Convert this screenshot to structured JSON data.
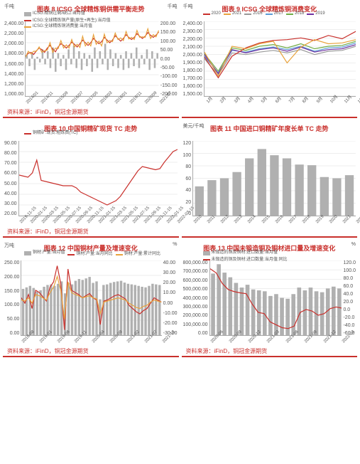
{
  "charts": [
    {
      "title": "图表 8 ICSG 全球精炼铜供需平衡走势",
      "y_unit": "千吨",
      "y_unit2": "千吨",
      "y_ticks": [
        "2,400.00",
        "2,200.00",
        "2,000.00",
        "1,800.00",
        "1,600.00",
        "1,400.00",
        "1,200.00",
        "1,000.00"
      ],
      "y2_ticks": [
        "200.00",
        "150.00",
        "100.00",
        "50.00",
        "0.00",
        "-50.00",
        "-100.00",
        "-150.00",
        "-200.00"
      ],
      "x_ticks": [
        "2014/01",
        "2014/11",
        "2015/09",
        "2016/07",
        "2017/05",
        "2018/03",
        "2019/01",
        "2019/11",
        "2020/09",
        "2021/07"
      ],
      "legend": [
        {
          "label": "ICSG:精铜过剩/缺口:当月值",
          "color": "#b0b0b0",
          "type": "box"
        },
        {
          "label": "ICSG:全球精炼铜产量(原生+再生):当月值",
          "color": "#c9302c",
          "type": "line"
        },
        {
          "label": "ICSG:全球精炼铜消费量:当月值",
          "color": "#e8a33d",
          "type": "line"
        }
      ],
      "source": "资料来源：iFinD，铜冠金源期货",
      "series": [
        {
          "type": "bars",
          "axis": 2,
          "color": "#b0b0b0",
          "values": [
            20,
            -40,
            30,
            -60,
            10,
            -20,
            50,
            -30,
            40,
            -50,
            60,
            -70,
            30,
            -40,
            20,
            -60,
            50,
            -30,
            70,
            -50,
            40,
            -60,
            30,
            -40,
            20,
            -70,
            60,
            -50,
            40,
            -30,
            80,
            -60,
            50,
            -40,
            30,
            -50,
            20,
            -60,
            40,
            -50,
            30,
            -40,
            60,
            -50,
            20,
            -30,
            50,
            -60,
            40,
            -50,
            30
          ]
        },
        {
          "type": "line",
          "axis": 1,
          "color": "#c9302c",
          "values": [
            1750,
            1800,
            1820,
            1780,
            1850,
            1900,
            1870,
            1820,
            1900,
            1950,
            1880,
            1830,
            1920,
            1980,
            1950,
            1900,
            1950,
            2010,
            1970,
            1920,
            1980,
            2050,
            2000,
            1950,
            2000,
            2080,
            2030,
            1980,
            2020,
            2100,
            2050,
            2000,
            2050,
            2130,
            2080,
            2030,
            2080,
            2150,
            2100,
            2060,
            2100,
            2170,
            2120,
            2080,
            2120,
            2190,
            2140,
            2100,
            2140,
            2200
          ]
        },
        {
          "type": "line",
          "axis": 1,
          "color": "#e8a33d",
          "values": [
            1730,
            1840,
            1790,
            1840,
            1840,
            1920,
            1820,
            1850,
            1860,
            2000,
            1820,
            1900,
            1890,
            2040,
            1900,
            1960,
            1900,
            2060,
            1920,
            1970,
            1910,
            2120,
            1940,
            2010,
            1940,
            2150,
            1970,
            2030,
            1940,
            2160,
            2000,
            2040,
            2020,
            2180,
            2060,
            2090,
            2040,
            2210,
            2070,
            2100,
            2060,
            2230,
            2100,
            2110,
            2100,
            2260,
            2080,
            2150,
            2110,
            2230
          ]
        }
      ],
      "y_range": [
        1000,
        2400
      ],
      "y2_range": [
        -200,
        200
      ]
    },
    {
      "title": "图表 9 ICSG 全球精炼铜消费变化",
      "y_unit": "千吨",
      "y_ticks": [
        "2,400.00",
        "2,300.00",
        "2,200.00",
        "2,100.00",
        "2,000.00",
        "1,900.00",
        "1,800.00",
        "1,700.00",
        "1,600.00",
        "1,500.00"
      ],
      "x_ticks": [
        "1月",
        "2月",
        "3月",
        "4月",
        "5月",
        "6月",
        "7月",
        "8月",
        "9月",
        "10月",
        "11月",
        "12月"
      ],
      "legend": [
        {
          "label": "2020",
          "color": "#c9302c",
          "type": "line"
        },
        {
          "label": "2021",
          "color": "#e8a33d",
          "type": "line"
        },
        {
          "label": "2016",
          "color": "#999",
          "type": "line"
        },
        {
          "label": "2017",
          "color": "#5b9bd5",
          "type": "line"
        },
        {
          "label": "2018",
          "color": "#70ad47",
          "type": "line"
        },
        {
          "label": "2019",
          "color": "#7030a0",
          "type": "line"
        }
      ],
      "source": "",
      "series": [
        {
          "type": "line",
          "color": "#999",
          "values": [
            1950,
            1750,
            2020,
            2000,
            2030,
            2050,
            2020,
            2060,
            2000,
            2040,
            2050,
            2100
          ]
        },
        {
          "type": "line",
          "color": "#5b9bd5",
          "values": [
            1980,
            1780,
            2050,
            2030,
            2070,
            2090,
            2060,
            2100,
            2040,
            2080,
            2090,
            2140
          ]
        },
        {
          "type": "line",
          "color": "#70ad47",
          "values": [
            2010,
            1800,
            2080,
            2050,
            2100,
            2120,
            2080,
            2130,
            2070,
            2100,
            2110,
            2160
          ]
        },
        {
          "type": "line",
          "color": "#7030a0",
          "values": [
            2000,
            1770,
            2060,
            2020,
            2060,
            2080,
            2040,
            2090,
            2030,
            2060,
            2070,
            2120
          ]
        },
        {
          "type": "line",
          "color": "#c9302c",
          "values": [
            1970,
            1720,
            1980,
            2080,
            2140,
            2170,
            2180,
            2200,
            2170,
            2230,
            2190,
            2280
          ]
        },
        {
          "type": "line",
          "color": "#e8a33d",
          "values": [
            2030,
            1740,
            2100,
            2070,
            2130,
            2160,
            1900,
            2090,
            2180,
            2130,
            2140,
            2180
          ]
        }
      ],
      "y_range": [
        1500,
        2400
      ]
    },
    {
      "title": "图表 10 中国铜精矿现货 TC 走势",
      "y_ticks": [
        "90.00",
        "80.00",
        "70.00",
        "60.00",
        "50.00",
        "40.00",
        "30.00",
        "20.00"
      ],
      "x_ticks": [
        "2019-11-15",
        "2020-01-15",
        "2020-03-15",
        "2020-05-15",
        "2020-07-15",
        "2020-09-15",
        "2020-11-15",
        "2021-01-15",
        "2021-03-15",
        "2021-05-15",
        "2021-07-15",
        "2021-09-15",
        "2021-11-15",
        "2022-01-15",
        "2022-03-15"
      ],
      "legend": [
        {
          "label": "铜精矿:现货:粗炼费(TC)",
          "color": "#c9302c",
          "type": "line"
        }
      ],
      "source": "资料来源：iFinD，铜冠金源期货",
      "series": [
        {
          "type": "line",
          "color": "#c9302c",
          "values": [
            58,
            57,
            56,
            60,
            72,
            53,
            52,
            51,
            50,
            49,
            48,
            48,
            48,
            46,
            42,
            40,
            38,
            36,
            34,
            32,
            30,
            32,
            34,
            38,
            44,
            50,
            56,
            62,
            66,
            65,
            64,
            63,
            64,
            70,
            75,
            80,
            82
          ]
        }
      ],
      "y_range": [
        20,
        90
      ]
    },
    {
      "title": "图表 11 中国进口铜精矿年度长单 TC 走势",
      "y_unit": "美元/千吨",
      "y_ticks": [
        "120",
        "100",
        "80",
        "60",
        "40",
        "20",
        "0"
      ],
      "x_ticks": [
        "2010",
        "2011",
        "2012",
        "2013",
        "2014",
        "2015",
        "2016",
        "2017",
        "2018",
        "2019",
        "2020",
        "2021",
        "2022"
      ],
      "legend": [],
      "source": "",
      "series": [
        {
          "type": "bars",
          "color": "#b0b0b0",
          "values": [
            47,
            57,
            60,
            70,
            92,
            107,
            97,
            92,
            82,
            81,
            62,
            60,
            65
          ]
        }
      ],
      "y_range": [
        0,
        120
      ]
    },
    {
      "title": "图表 12 中国铜材产量及增速变化",
      "y_unit": "万吨",
      "y_unit2": "%",
      "y_ticks": [
        "250.00",
        "200.00",
        "150.00",
        "100.00",
        "50.00",
        "0.00"
      ],
      "y2_ticks": [
        "40.00",
        "30.00",
        "20.00",
        "10.00",
        "0.00",
        "-10.00",
        "-20.00",
        "-30.00"
      ],
      "x_ticks": [
        "2018-08",
        "2019-01",
        "2019-06",
        "2019-11",
        "2020-04",
        "2020-09",
        "2021-02",
        "2021-07",
        "2021-12"
      ],
      "legend": [
        {
          "label": "铜材:产量:当月值",
          "color": "#b0b0b0",
          "type": "box"
        },
        {
          "label": "铜材:产量:当月同比",
          "color": "#c9302c",
          "type": "line"
        },
        {
          "label": "铜材:产量:累计同比",
          "color": "#e8a33d",
          "type": "line"
        }
      ],
      "source": "资料来源：iFinD，铜冠金源期货",
      "series": [
        {
          "type": "bars",
          "axis": 1,
          "color": "#b0b0b0",
          "values": [
            155,
            160,
            165,
            158,
            145,
            150,
            162,
            168,
            170,
            165,
            172,
            180,
            140,
            175,
            170,
            182,
            188,
            185,
            190,
            195,
            175,
            180,
            120,
            168,
            170,
            175,
            178,
            180,
            182,
            176,
            172,
            170,
            168,
            165,
            162,
            160,
            165,
            172,
            170,
            168
          ]
        },
        {
          "type": "line",
          "axis": 2,
          "color": "#c9302c",
          "values": [
            5,
            0,
            8,
            -5,
            12,
            10,
            6,
            2,
            15,
            20,
            35,
            18,
            -25,
            32,
            12,
            10,
            8,
            5,
            7,
            9,
            5,
            3,
            -20,
            2,
            3,
            5,
            7,
            8,
            6,
            4,
            -2,
            -5,
            -8,
            -10,
            -7,
            -5,
            0,
            5,
            3,
            1
          ]
        },
        {
          "type": "line",
          "axis": 2,
          "color": "#e8a33d",
          "values": [
            3,
            2,
            5,
            0,
            8,
            7,
            5,
            3,
            10,
            15,
            25,
            12,
            -15,
            20,
            10,
            8,
            7,
            5,
            6,
            7,
            5,
            4,
            -10,
            1,
            2,
            3,
            4,
            5,
            4,
            3,
            0,
            -2,
            -4,
            -5,
            -3,
            -2,
            1,
            3,
            2,
            1
          ]
        }
      ],
      "y_range": [
        0,
        250
      ],
      "y2_range": [
        -30,
        40
      ]
    },
    {
      "title": "图表 13 中国未锻造铜及铜材进口量及增速变化",
      "y_unit2": "%",
      "y_ticks": [
        "800,000.00",
        "700,000.00",
        "600,000.00",
        "500,000.00",
        "400,000.00",
        "300,000.00",
        "200,000.00",
        "100,000.00",
        "0.00"
      ],
      "y2_ticks": [
        "120.0",
        "100.0",
        "80.0",
        "60.0",
        "40.0",
        "20.0",
        "0.0",
        "-20.0",
        "-40.0",
        "-60.0"
      ],
      "x_ticks": [
        "2020-06",
        "2020-09",
        "2020-12",
        "2021-03",
        "2021-06",
        "2021-09",
        "2021-12",
        "2022-03"
      ],
      "legend": [
        {
          "label": "未锻造的铜及铜材:进口数量:当月值",
          "color": "#b0b0b0",
          "type": "box"
        },
        {
          "label": "未锻造的铜及铜材:进口数量:当月值:同比",
          "color": "#c9302c",
          "type": "line"
        }
      ],
      "source": "资料来源：iFinD，铜冠金源期货",
      "series": [
        {
          "type": "bars",
          "axis": 1,
          "color": "#b0b0b0",
          "values": [
            660000,
            760000,
            670000,
            620000,
            560000,
            510000,
            540000,
            490000,
            480000,
            470000,
            420000,
            440000,
            400000,
            390000,
            440000,
            510000,
            480000,
            510000,
            470000,
            460000,
            500000,
            520000,
            500000
          ]
        },
        {
          "type": "line",
          "axis": 2,
          "color": "#c9302c",
          "values": [
            100,
            90,
            65,
            50,
            45,
            42,
            40,
            15,
            -5,
            -8,
            -28,
            -35,
            -42,
            -44,
            -38,
            -5,
            2,
            -2,
            -12,
            -8,
            4,
            8,
            5
          ]
        }
      ],
      "y_range": [
        0,
        800000
      ],
      "y2_range": [
        -60,
        120
      ]
    }
  ]
}
